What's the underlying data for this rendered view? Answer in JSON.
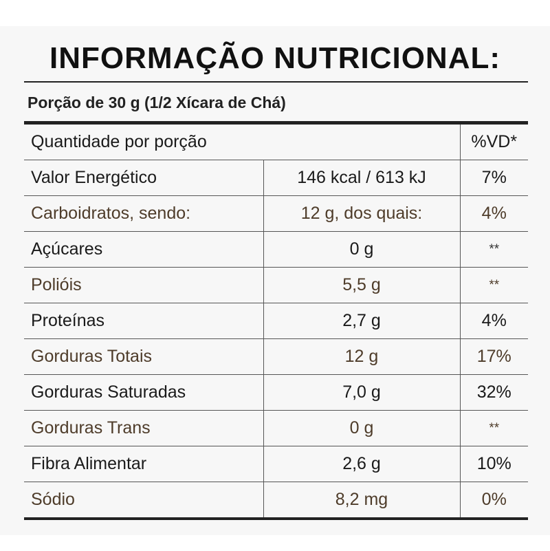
{
  "title": "INFORMAÇÃO NUTRICIONAL:",
  "portion": "Porção de 30 g (1/2 Xícara de Chá)",
  "header": {
    "label": "Quantidade por porção",
    "vd": "%VD*"
  },
  "rows": [
    {
      "name": "Valor Energético",
      "amount": "146 kcal / 613 kJ",
      "vd": "7%"
    },
    {
      "name": "Carboidratos, sendo:",
      "amount": "12 g, dos quais:",
      "vd": "4%"
    },
    {
      "name": "Açúcares",
      "amount": "0 g",
      "vd": "**"
    },
    {
      "name": "Polióis",
      "amount": "5,5 g",
      "vd": "**"
    },
    {
      "name": "Proteínas",
      "amount": "2,7 g",
      "vd": "4%"
    },
    {
      "name": "Gorduras Totais",
      "amount": "12 g",
      "vd": "17%"
    },
    {
      "name": "Gorduras Saturadas",
      "amount": "7,0 g",
      "vd": "32%"
    },
    {
      "name": "Gorduras Trans",
      "amount": "0 g",
      "vd": "**"
    },
    {
      "name": "Fibra Alimentar",
      "amount": "2,6 g",
      "vd": "10%"
    },
    {
      "name": "Sódio",
      "amount": "8,2 mg",
      "vd": "0%"
    }
  ],
  "colors": {
    "text": "#1a1a1a",
    "alt_text": "#4e3c2a",
    "rule": "#222222",
    "panel": "#f7f7f7"
  }
}
